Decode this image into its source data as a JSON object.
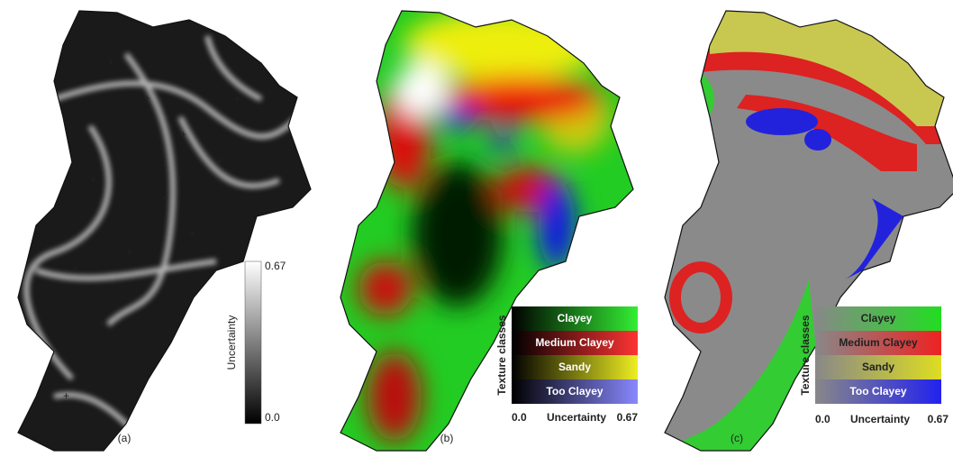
{
  "panels": [
    {
      "label": "(a)",
      "legend": {
        "title": "Uncertainty",
        "max": "0.67",
        "min": "0.0"
      }
    },
    {
      "label": "(b)",
      "legend": {
        "title": "Texture classes",
        "classes": [
          "Clayey",
          "Medium Clayey",
          "Sandy",
          "Too Clayey"
        ],
        "axis_min": "0.0",
        "axis_title": "Uncertainty",
        "axis_max": "0.67"
      }
    },
    {
      "label": "(c)",
      "legend": {
        "title": "Texture classes",
        "classes": [
          "Clayey",
          "Medium Clayey",
          "Sandy",
          "Too Clayey"
        ],
        "axis_min": "0.0",
        "axis_title": "Uncertainty",
        "axis_max": "0.67"
      }
    }
  ]
}
